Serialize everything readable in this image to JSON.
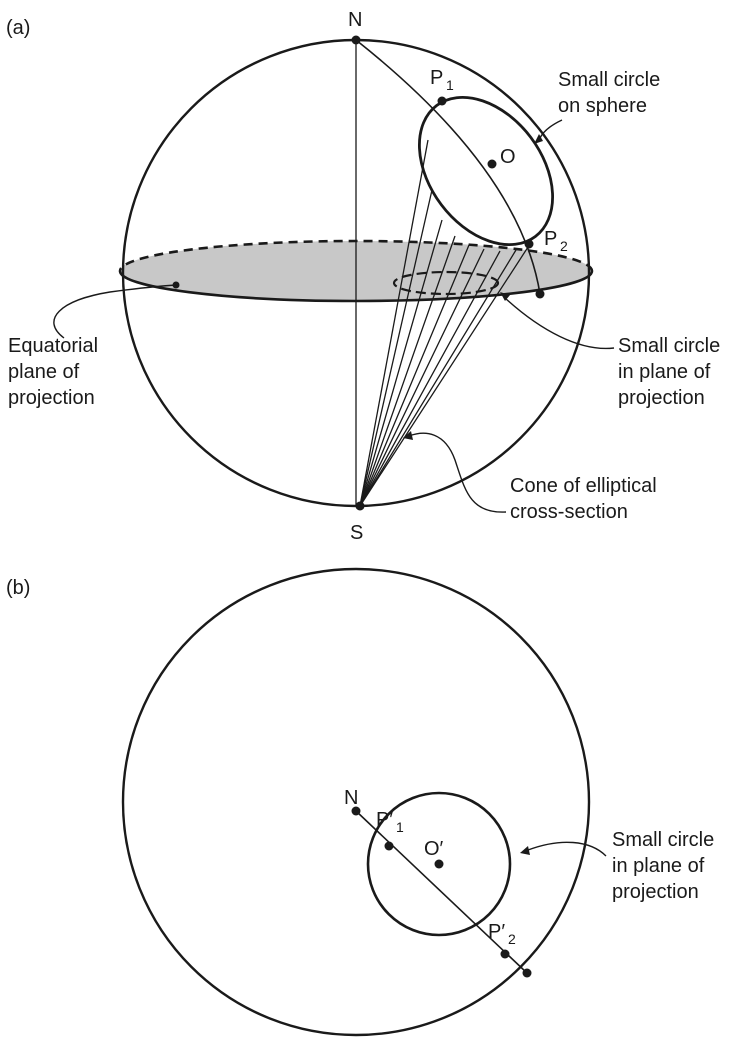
{
  "panel_a": {
    "panel_label": "(a)",
    "points": {
      "N": "N",
      "S": "S",
      "O": "O",
      "P1": "P",
      "P1_sub": "1",
      "P2": "P",
      "P2_sub": "2"
    },
    "labels": {
      "small_circle_sphere": [
        "Small circle",
        "on sphere"
      ],
      "equatorial_plane": [
        "Equatorial",
        "plane of",
        "projection"
      ],
      "small_circle_plane": [
        "Small circle",
        "in plane of",
        "projection"
      ],
      "cone": [
        "Cone of elliptical",
        "cross-section"
      ]
    },
    "colors": {
      "equatorial_fill": "#c8c8c8",
      "ink": "#1a1a1a"
    }
  },
  "panel_b": {
    "panel_label": "(b)",
    "points": {
      "N": "N",
      "O": "O′",
      "P1": "P′",
      "P1_sub": "1",
      "P2": "P′",
      "P2_sub": "2"
    },
    "labels": {
      "small_circle_plane": [
        "Small circle",
        "in plane of",
        "projection"
      ]
    }
  }
}
